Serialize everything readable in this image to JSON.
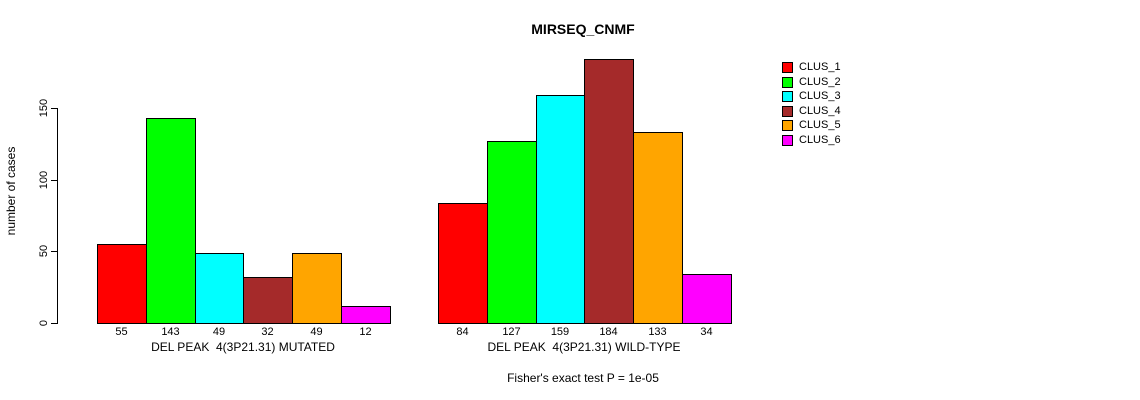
{
  "chart_data": {
    "type": "bar",
    "title": "MIRSEQ_CNMF",
    "ylabel": "number of cases",
    "footnote": "Fisher's exact test P = 1e-05",
    "yticks": [
      0,
      50,
      100,
      150
    ],
    "ylim": [
      0,
      184
    ],
    "grid": false,
    "legend_position": "right",
    "legend": [
      {
        "label": "CLUS_1",
        "color": "#FF0000"
      },
      {
        "label": "CLUS_2",
        "color": "#00FF00"
      },
      {
        "label": "CLUS_3",
        "color": "#00FFFF"
      },
      {
        "label": "CLUS_4",
        "color": "#A52A2A"
      },
      {
        "label": "CLUS_5",
        "color": "#FFA500"
      },
      {
        "label": "CLUS_6",
        "color": "#FF00FF"
      }
    ],
    "groups": [
      {
        "label": "DEL PEAK  4(3P21.31) MUTATED",
        "series": [
          "CLUS_1",
          "CLUS_2",
          "CLUS_3",
          "CLUS_4",
          "CLUS_5",
          "CLUS_6"
        ],
        "values": [
          55,
          143,
          49,
          32,
          49,
          12
        ]
      },
      {
        "label": "DEL PEAK  4(3P21.31) WILD-TYPE",
        "series": [
          "CLUS_1",
          "CLUS_2",
          "CLUS_3",
          "CLUS_4",
          "CLUS_5",
          "CLUS_6"
        ],
        "values": [
          84,
          127,
          159,
          184,
          133,
          34
        ]
      }
    ]
  }
}
